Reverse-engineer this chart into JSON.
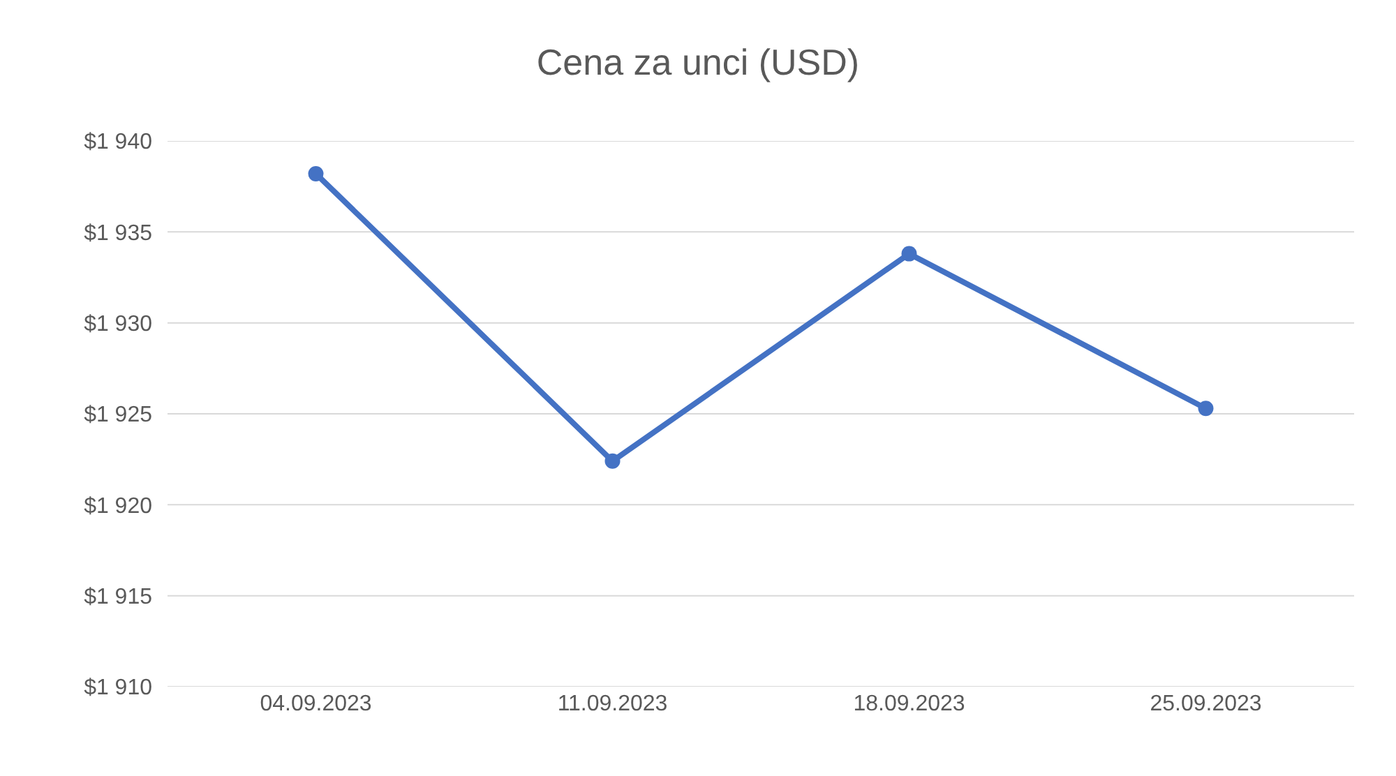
{
  "chart_data": {
    "type": "line",
    "title": "Cena za unci (USD)",
    "categories": [
      "04.09.2023",
      "11.09.2023",
      "18.09.2023",
      "25.09.2023"
    ],
    "series": [
      {
        "color": "#4472c4",
        "values": [
          1938.2,
          1922.4,
          1933.8,
          1925.3
        ]
      }
    ],
    "ylim": [
      1910,
      1940
    ],
    "yticks": [
      {
        "value": 1910,
        "label": "$1 910"
      },
      {
        "value": 1915,
        "label": "$1 915"
      },
      {
        "value": 1920,
        "label": "$1 920"
      },
      {
        "value": 1925,
        "label": "$1 925"
      },
      {
        "value": 1930,
        "label": "$1 930"
      },
      {
        "value": 1935,
        "label": "$1 935"
      },
      {
        "value": 1940,
        "label": "$1 940"
      }
    ],
    "grid": "y",
    "marker": "circle",
    "line_style": "solid"
  }
}
